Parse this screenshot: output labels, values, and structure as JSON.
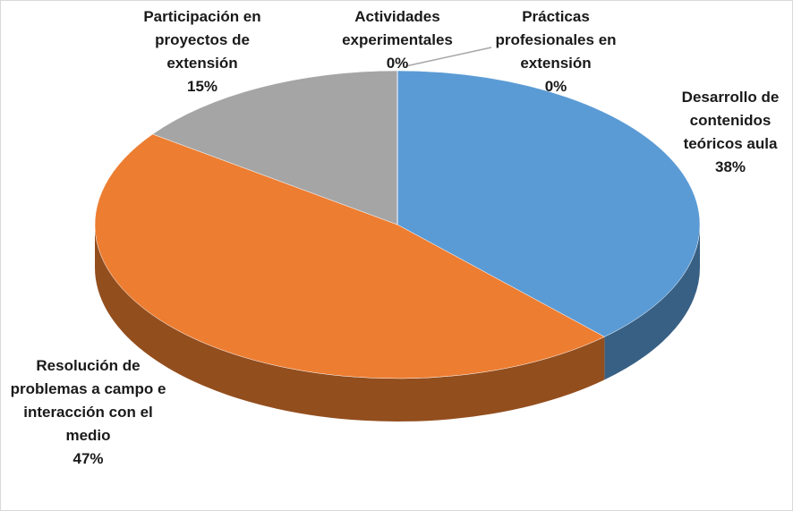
{
  "chart_data": {
    "type": "pie3d",
    "categories": [
      "Desarrollo de contenidos teóricos aula",
      "Resolución de problemas a campo e interacción con el medio",
      "Participación en proyectos de extensión",
      "Actividades experimentales",
      "Prácticas profesionales en extensión"
    ],
    "values": [
      38,
      47,
      15,
      0,
      0
    ],
    "value_labels": [
      "38%",
      "47%",
      "15%",
      "0%",
      "0%"
    ],
    "colors": [
      "#5b9bd5",
      "#ed7d31",
      "#a5a5a5",
      "#ffc000",
      "#4472c4"
    ]
  }
}
